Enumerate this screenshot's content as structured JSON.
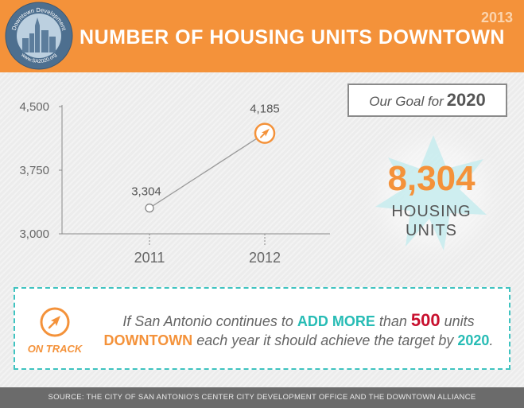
{
  "header": {
    "title": "NUMBER OF HOUSING UNITS DOWNTOWN",
    "year": "2013",
    "logo_top_text": "Downtown Development",
    "logo_bottom_text": "www.SA2020.org"
  },
  "chart_data": {
    "type": "line",
    "categories": [
      "2011",
      "2012"
    ],
    "values": [
      3304,
      4185
    ],
    "data_labels": [
      "3,304",
      "4,185"
    ],
    "ylim": [
      3000,
      4500
    ],
    "yticks": [
      3000,
      3750,
      4500
    ],
    "ytick_labels": [
      "3,000",
      "3,750",
      "4,500"
    ],
    "grid": false
  },
  "goal": {
    "label": "Our Goal for",
    "year": "2020",
    "value": "8,304",
    "unit_line1": "HOUSING",
    "unit_line2": "UNITS"
  },
  "on_track": {
    "label": "ON TRACK",
    "msg_1": "If San Antonio continues to ",
    "msg_2": "ADD MORE",
    "msg_3": " than ",
    "msg_4": "500",
    "msg_5": " units ",
    "msg_6": "DOWNTOWN",
    "msg_7": " each year it should achieve the target by ",
    "msg_8": "2020",
    "msg_9": "."
  },
  "footer": {
    "source": "SOURCE: THE CITY OF SAN ANTONIO'S CENTER CITY DEVELOPMENT OFFICE AND THE DOWNTOWN ALLIANCE"
  },
  "colors": {
    "orange": "#f4923a",
    "teal": "#27bcb5",
    "red": "#c8102e",
    "gray": "#666666"
  }
}
